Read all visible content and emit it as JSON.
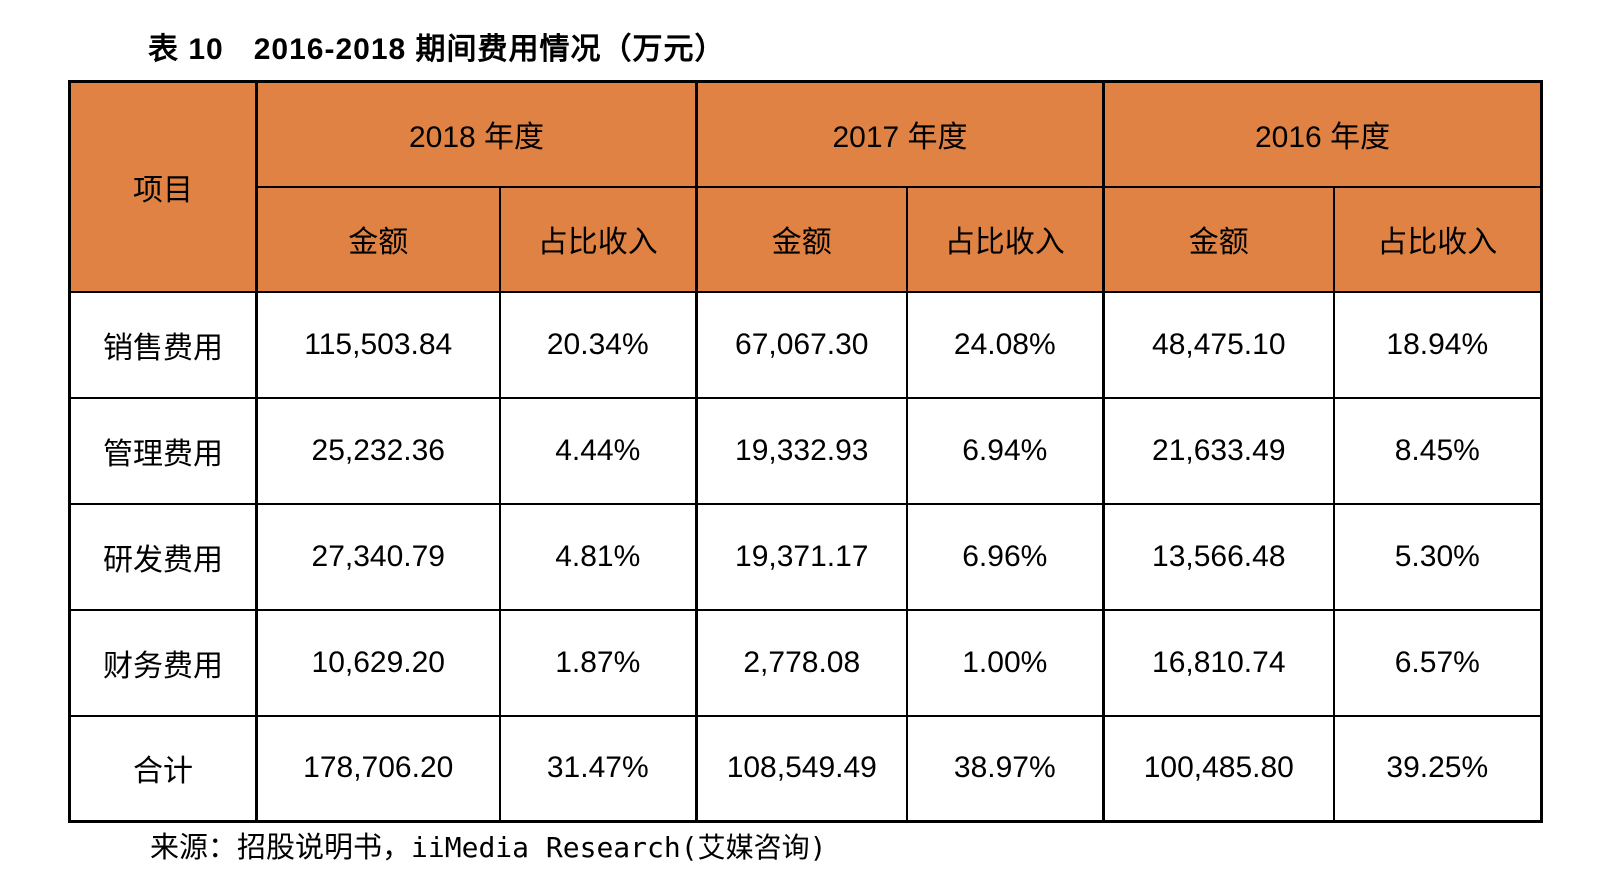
{
  "colors": {
    "page_bg": "#FFFFFF",
    "header_bg": "#DF8243",
    "border": "#000000",
    "text": "#000000"
  },
  "chart_data": {
    "type": "table",
    "title_tag": "表 10",
    "title": "2016-2018 期间费用情况（万元）",
    "corner_header": "项目",
    "year_groups": [
      {
        "year": "2018 年度",
        "sub": [
          "金额",
          "占比收入"
        ]
      },
      {
        "year": "2017 年度",
        "sub": [
          "金额",
          "占比收入"
        ]
      },
      {
        "year": "2016 年度",
        "sub": [
          "金额",
          "占比收入"
        ]
      }
    ],
    "rows": [
      {
        "item": "销售费用",
        "cells": [
          "115,503.84",
          "20.34%",
          "67,067.30",
          "24.08%",
          "48,475.10",
          "18.94%"
        ]
      },
      {
        "item": "管理费用",
        "cells": [
          "25,232.36",
          "4.44%",
          "19,332.93",
          "6.94%",
          "21,633.49",
          "8.45%"
        ]
      },
      {
        "item": "研发费用",
        "cells": [
          "27,340.79",
          "4.81%",
          "19,371.17",
          "6.96%",
          "13,566.48",
          "5.30%"
        ]
      },
      {
        "item": "财务费用",
        "cells": [
          "10,629.20",
          "1.87%",
          "2,778.08",
          "1.00%",
          "16,810.74",
          "6.57%"
        ]
      },
      {
        "item": "合计",
        "cells": [
          "178,706.20",
          "31.47%",
          "108,549.49",
          "38.97%",
          "100,485.80",
          "39.25%"
        ]
      }
    ],
    "source_prefix": "来源：招股说明书，",
    "source_suffix": "iiMedia Research(艾媒咨询)"
  }
}
